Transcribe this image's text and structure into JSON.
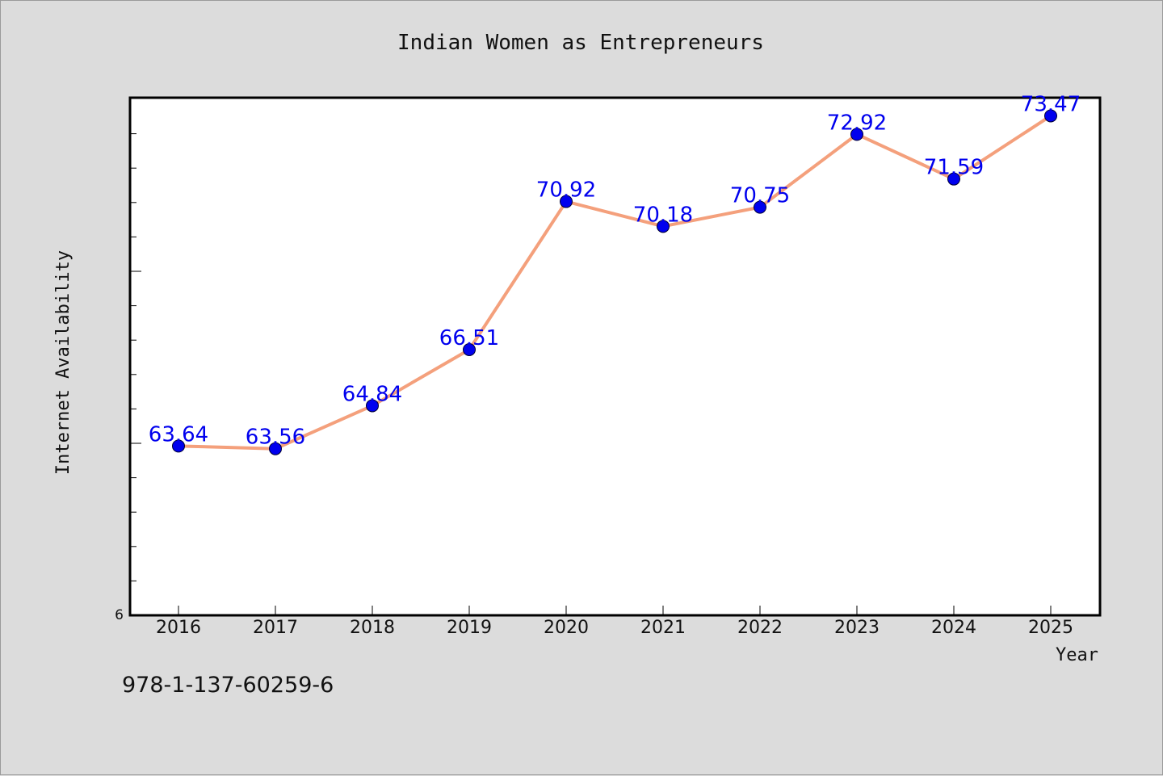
{
  "chart_data": {
    "type": "line",
    "title": "Indian Women as Entrepreneurs",
    "xlabel": "Year",
    "ylabel": "Internet Availability",
    "x": [
      "2016",
      "2017",
      "2018",
      "2019",
      "2020",
      "2021",
      "2022",
      "2023",
      "2024",
      "2025"
    ],
    "series": [
      {
        "values": [
          63.64,
          63.56,
          64.84,
          66.51,
          70.92,
          70.18,
          70.75,
          72.92,
          71.59,
          73.47
        ]
      }
    ],
    "data_labels": [
      "63.64",
      "63.56",
      "64.84",
      "66.51",
      "70.92",
      "70.18",
      "70.75",
      "72.92",
      "71.59",
      "73.47"
    ],
    "y_tick_label": "6",
    "ylim": [
      58.6,
      73.65
    ],
    "line_color": "#f4a07c",
    "marker_color": "#0000ee",
    "label_color": "#0000ee",
    "grid": false,
    "legend": "none"
  },
  "footer": {
    "isbn": "978-1-137-60259-6"
  }
}
